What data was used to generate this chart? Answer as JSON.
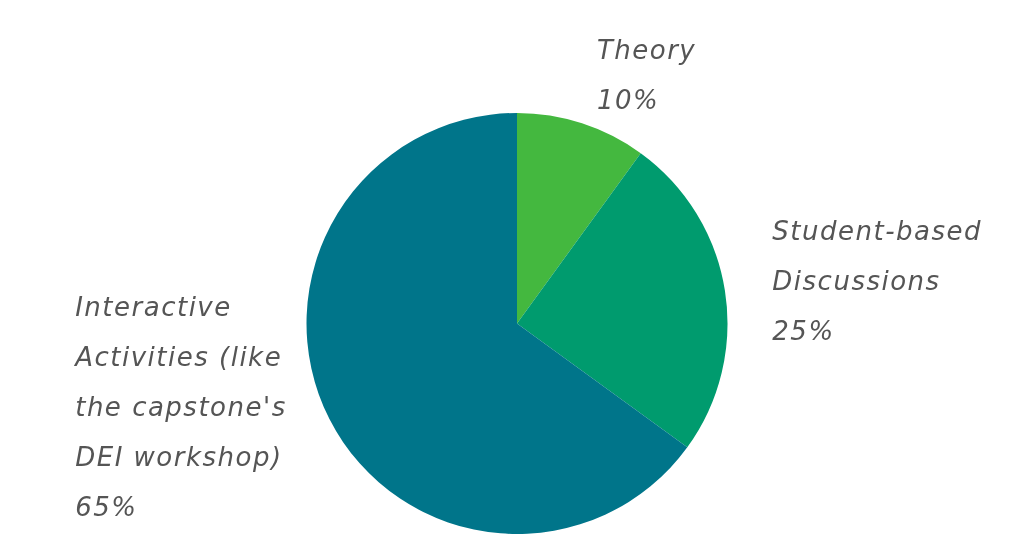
{
  "chart_data": {
    "type": "pie",
    "categories": [
      "Theory",
      "Student-based Discussions",
      "Interactive Activities (like the capstone's DEI workshop)"
    ],
    "values": [
      10,
      25,
      65
    ],
    "value_labels": [
      "10%",
      "25%",
      "65%"
    ],
    "colors": [
      "#44b83f",
      "#009b6e",
      "#00758a"
    ],
    "legend": false
  }
}
